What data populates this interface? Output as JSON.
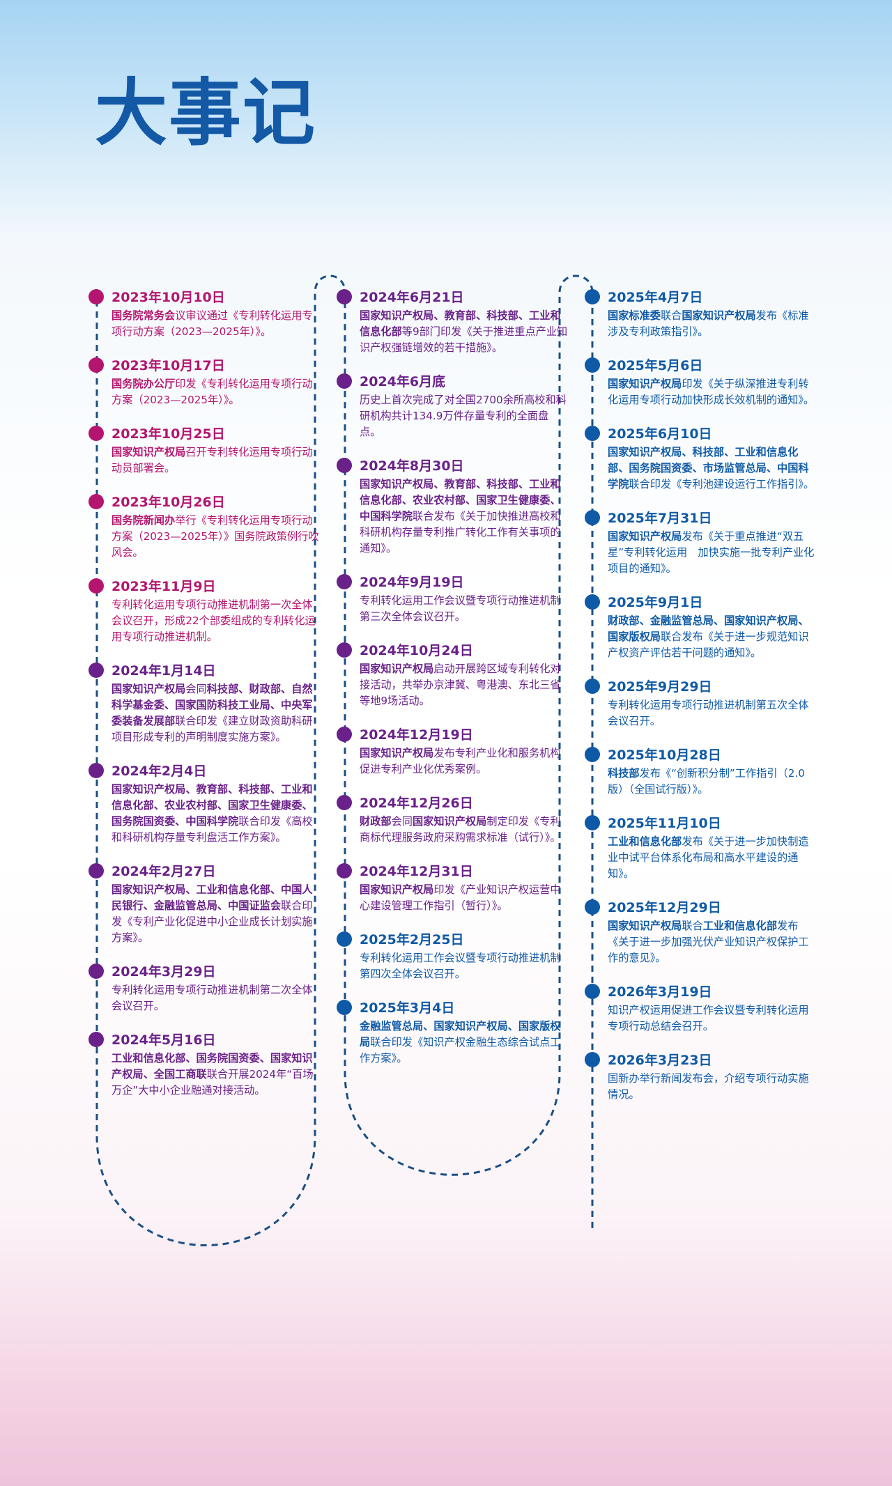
{
  "title": "大事记",
  "colors": {
    "c2023": "#b4156f",
    "c2024": "#6a2189",
    "c2025": "#0f5aa6",
    "path": "#1a4f86"
  },
  "columns": [
    [
      {
        "theme": "c2023",
        "date": "2023年10月10日",
        "desc": [
          {
            "t": "国务院常务会",
            "b": true
          },
          {
            "t": "议审议通过《专利转化运用专项行动方案（2023—2025年）》。"
          }
        ]
      },
      {
        "theme": "c2023",
        "date": "2023年10月17日",
        "desc": [
          {
            "t": "国务院办公厅",
            "b": true
          },
          {
            "t": "印发《专利转化运用专项行动方案（2023—2025年）》。"
          }
        ]
      },
      {
        "theme": "c2023",
        "date": "2023年10月25日",
        "desc": [
          {
            "t": "国家知识产权局",
            "b": true
          },
          {
            "t": "召开专利转化运用专项行动动员部署会。"
          }
        ]
      },
      {
        "theme": "c2023",
        "date": "2023年10月26日",
        "desc": [
          {
            "t": "国务院新闻办",
            "b": true
          },
          {
            "t": "举行《专利转化运用专项行动方案（2023—2025年）》国务院政策例行吹风会。"
          }
        ]
      },
      {
        "theme": "c2023",
        "date": "2023年11月9日",
        "desc": [
          {
            "t": "专利转化运用专项行动推进机制第一次全体会议召开，形成22个部委组成的专利转化运用专项行动推进机制。"
          }
        ]
      },
      {
        "theme": "c2024",
        "date": "2024年1月14日",
        "desc": [
          {
            "t": "国家知识产权局",
            "b": true
          },
          {
            "t": "会同"
          },
          {
            "t": "科技部、财政部、自然科学基金委、国家国防科技工业局、中央军委装备发展部",
            "b": true
          },
          {
            "t": "联合印发《建立财政资助科研项目形成专利的声明制度实施方案》。"
          }
        ]
      },
      {
        "theme": "c2024",
        "date": "2024年2月4日",
        "desc": [
          {
            "t": "国家知识产权局、教育部、科技部、工业和信息化部、农业农村部、国家卫生健康委、国务院国资委、中国科学院",
            "b": true
          },
          {
            "t": "联合印发《高校和科研机构存量专利盘活工作方案》。"
          }
        ]
      },
      {
        "theme": "c2024",
        "date": "2024年2月27日",
        "desc": [
          {
            "t": "国家知识产权局、工业和信息化部、中国人民银行、金融监管总局、中国证监会",
            "b": true
          },
          {
            "t": "联合印发《专利产业化促进中小企业成长计划实施方案》。"
          }
        ]
      },
      {
        "theme": "c2024",
        "date": "2024年3月29日",
        "desc": [
          {
            "t": "专利转化运用专项行动推进机制第二次全体会议召开。"
          }
        ]
      },
      {
        "theme": "c2024",
        "date": "2024年5月16日",
        "desc": [
          {
            "t": "工业和信息化部、国务院国资委、国家知识产权局、全国工商联",
            "b": true
          },
          {
            "t": "联合开展2024年“百场万企”大中小企业融通对接活动。"
          }
        ]
      }
    ],
    [
      {
        "theme": "c2024",
        "date": "2024年6月21日",
        "desc": [
          {
            "t": "国家知识产权局、教育部、科技部、工业和信息化部",
            "b": true
          },
          {
            "t": "等9部门印发《关于推进重点产业知识产权强链增效的若干措施》。"
          }
        ]
      },
      {
        "theme": "c2024",
        "date": "2024年6月底",
        "desc": [
          {
            "t": "历史上首次完成了对全国2700余所高校和科研机构共计134.9万件存量专利的全面盘点。"
          }
        ]
      },
      {
        "theme": "c2024",
        "date": "2024年8月30日",
        "desc": [
          {
            "t": "国家知识产权局、教育部、科技部、工业和信息化部、农业农村部、国家卫生健康委、中国科学院",
            "b": true
          },
          {
            "t": "联合发布《关于加快推进高校和科研机构存量专利推广转化工作有关事项的通知》。"
          }
        ]
      },
      {
        "theme": "c2024",
        "date": "2024年9月19日",
        "desc": [
          {
            "t": "专利转化运用工作会议暨专项行动推进机制第三次全体会议召开。"
          }
        ]
      },
      {
        "theme": "c2024",
        "date": "2024年10月24日",
        "desc": [
          {
            "t": "国家知识产权局",
            "b": true
          },
          {
            "t": "启动开展跨区域专利转化对接活动，共举办京津冀、粤港澳、东北三省等地9场活动。"
          }
        ]
      },
      {
        "theme": "c2024",
        "date": "2024年12月19日",
        "desc": [
          {
            "t": "国家知识产权局",
            "b": true
          },
          {
            "t": "发布专利产业化和服务机构促进专利产业化优秀案例。"
          }
        ]
      },
      {
        "theme": "c2024",
        "date": "2024年12月26日",
        "desc": [
          {
            "t": "财政部",
            "b": true
          },
          {
            "t": "会同"
          },
          {
            "t": "国家知识产权局",
            "b": true
          },
          {
            "t": "制定印发《专利商标代理服务政府采购需求标准（试行）》。"
          }
        ]
      },
      {
        "theme": "c2024",
        "date": "2024年12月31日",
        "desc": [
          {
            "t": "国家知识产权局",
            "b": true
          },
          {
            "t": "印发《产业知识产权运营中心建设管理工作指引（暂行）》。"
          }
        ]
      },
      {
        "theme": "c2025",
        "date": "2025年2月25日",
        "desc": [
          {
            "t": "专利转化运用工作会议暨专项行动推进机制第四次全体会议召开。"
          }
        ]
      },
      {
        "theme": "c2025",
        "date": "2025年3月4日",
        "desc": [
          {
            "t": "金融监管总局、国家知识产权局、国家版权局",
            "b": true
          },
          {
            "t": "联合印发《知识产权金融生态综合试点工作方案》。"
          }
        ]
      }
    ],
    [
      {
        "theme": "c2025",
        "date": "2025年4月7日",
        "desc": [
          {
            "t": "国家标准委",
            "b": true
          },
          {
            "t": "联合"
          },
          {
            "t": "国家知识产权局",
            "b": true
          },
          {
            "t": "发布《标准涉及专利政策指引》。"
          }
        ]
      },
      {
        "theme": "c2025",
        "date": "2025年5月6日",
        "desc": [
          {
            "t": "国家知识产权局",
            "b": true
          },
          {
            "t": "印发《关于纵深推进专利转化运用专项行动加快形成长效机制的通知》。"
          }
        ]
      },
      {
        "theme": "c2025",
        "date": "2025年6月10日",
        "desc": [
          {
            "t": "国家知识产权局、科技部、工业和信息化部、国务院国资委、市场监管总局、中国科学院",
            "b": true
          },
          {
            "t": "联合印发《专利池建设运行工作指引》。"
          }
        ]
      },
      {
        "theme": "c2025",
        "date": "2025年7月31日",
        "desc": [
          {
            "t": "国家知识产权局",
            "b": true
          },
          {
            "t": "发布《关于重点推进“双五星”专利转化运用　加快实施一批专利产业化项目的通知》。"
          }
        ]
      },
      {
        "theme": "c2025",
        "date": "2025年9月1日",
        "desc": [
          {
            "t": "财政部、金融监管总局、国家知识产权局、国家版权局",
            "b": true
          },
          {
            "t": "联合发布《关于进一步规范知识产权资产评估若干问题的通知》。"
          }
        ]
      },
      {
        "theme": "c2025",
        "date": "2025年9月29日",
        "desc": [
          {
            "t": "专利转化运用专项行动推进机制第五次全体会议召开。"
          }
        ]
      },
      {
        "theme": "c2025",
        "date": "2025年10月28日",
        "desc": [
          {
            "t": "科技部",
            "b": true
          },
          {
            "t": "发布《“创新积分制”工作指引（2.0版）（全国试行版）》。"
          }
        ]
      },
      {
        "theme": "c2025",
        "date": "2025年11月10日",
        "desc": [
          {
            "t": "工业和信息化部",
            "b": true
          },
          {
            "t": "发布《关于进一步加快制造业中试平台体系化布局和高水平建设的通知》。"
          }
        ]
      },
      {
        "theme": "c2025",
        "date": "2025年12月29日",
        "desc": [
          {
            "t": "国家知识产权局",
            "b": true
          },
          {
            "t": "联合"
          },
          {
            "t": "工业和信息化部",
            "b": true
          },
          {
            "t": "发布《关于进一步加强光伏产业知识产权保护工作的意见》。"
          }
        ]
      },
      {
        "theme": "c2025",
        "date": "2026年3月19日",
        "desc": [
          {
            "t": "知识产权运用促进工作会议暨专利转化运用专项行动总结会召开。"
          }
        ]
      },
      {
        "theme": "c2025",
        "date": "2026年3月23日",
        "desc": [
          {
            "t": "国新办举行新闻发布会，介绍专项行动实施情况。"
          }
        ]
      }
    ]
  ]
}
